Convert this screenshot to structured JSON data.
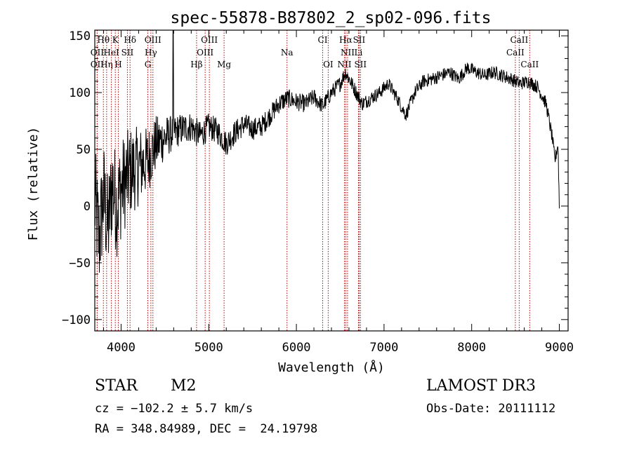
{
  "chart_data": {
    "type": "line",
    "title": "spec-55878-B87802_2_sp02-096.fits",
    "xlabel": "Wavelength (Å)",
    "ylabel": "Flux (relative)",
    "xlim": [
      3700,
      9100
    ],
    "ylim": [
      -110,
      155
    ],
    "xticks": [
      4000,
      5000,
      6000,
      7000,
      8000,
      9000
    ],
    "yticks": [
      -100,
      -50,
      0,
      50,
      100,
      150
    ],
    "x_tick_labels": [
      "4000",
      "5000",
      "6000",
      "7000",
      "8000",
      "9000"
    ],
    "y_tick_labels": [
      "−100",
      "−50",
      "0",
      "50",
      "100",
      "150"
    ],
    "grid": false,
    "series": [
      {
        "name": "flux",
        "noise_sigma_by_wavelength": [
          [
            3700,
            50
          ],
          [
            4000,
            45
          ],
          [
            4400,
            25
          ],
          [
            4600,
            15
          ],
          [
            5000,
            12
          ],
          [
            6000,
            8
          ],
          [
            7000,
            6
          ],
          [
            9000,
            6
          ]
        ],
        "points": [
          [
            3700,
            5
          ],
          [
            3750,
            -30
          ],
          [
            3800,
            10
          ],
          [
            3850,
            -20
          ],
          [
            3900,
            20
          ],
          [
            3950,
            0
          ],
          [
            4000,
            15
          ],
          [
            4100,
            30
          ],
          [
            4200,
            35
          ],
          [
            4300,
            40
          ],
          [
            4400,
            55
          ],
          [
            4500,
            60
          ],
          [
            4600,
            65
          ],
          [
            4700,
            68
          ],
          [
            4800,
            70
          ],
          [
            4900,
            62
          ],
          [
            5000,
            70
          ],
          [
            5100,
            66
          ],
          [
            5200,
            55
          ],
          [
            5300,
            65
          ],
          [
            5400,
            72
          ],
          [
            5500,
            68
          ],
          [
            5600,
            70
          ],
          [
            5700,
            80
          ],
          [
            5800,
            90
          ],
          [
            5900,
            95
          ],
          [
            6000,
            92
          ],
          [
            6100,
            90
          ],
          [
            6200,
            96
          ],
          [
            6300,
            88
          ],
          [
            6400,
            100
          ],
          [
            6500,
            108
          ],
          [
            6560,
            118
          ],
          [
            6650,
            105
          ],
          [
            6750,
            90
          ],
          [
            6850,
            95
          ],
          [
            6950,
            100
          ],
          [
            7050,
            108
          ],
          [
            7150,
            95
          ],
          [
            7250,
            80
          ],
          [
            7350,
            100
          ],
          [
            7450,
            110
          ],
          [
            7550,
            112
          ],
          [
            7650,
            115
          ],
          [
            7750,
            118
          ],
          [
            7850,
            112
          ],
          [
            7950,
            122
          ],
          [
            8050,
            118
          ],
          [
            8150,
            115
          ],
          [
            8250,
            118
          ],
          [
            8350,
            115
          ],
          [
            8450,
            112
          ],
          [
            8550,
            108
          ],
          [
            8650,
            110
          ],
          [
            8750,
            105
          ],
          [
            8850,
            90
          ],
          [
            8920,
            60
          ],
          [
            8950,
            40
          ],
          [
            8985,
            55
          ],
          [
            9000,
            0
          ]
        ]
      }
    ],
    "line_markers": [
      {
        "label": "Hθ",
        "wavelength": 3798,
        "row": 1
      },
      {
        "label": "K",
        "wavelength": 3934,
        "row": 1
      },
      {
        "label": "Hδ",
        "wavelength": 4102,
        "row": 1
      },
      {
        "label": "OIII",
        "wavelength": 4363,
        "row": 1
      },
      {
        "label": "OIII",
        "wavelength": 5007,
        "row": 1
      },
      {
        "label": "CI",
        "wavelength": 6300,
        "row": 1
      },
      {
        "label": "Hα",
        "wavelength": 6563,
        "row": 1
      },
      {
        "label": "SII",
        "wavelength": 6716,
        "row": 1
      },
      {
        "label": "CaII",
        "wavelength": 8542,
        "row": 1
      },
      {
        "label": "OII",
        "wavelength": 3727,
        "row": 2
      },
      {
        "label": "HeI",
        "wavelength": 3889,
        "row": 2
      },
      {
        "label": "SII",
        "wavelength": 4072,
        "row": 2
      },
      {
        "label": "Hγ",
        "wavelength": 4340,
        "row": 2
      },
      {
        "label": "OIII",
        "wavelength": 4959,
        "row": 2
      },
      {
        "label": "Na",
        "wavelength": 5893,
        "row": 2
      },
      {
        "label": "NII",
        "wavelength": 6584,
        "row": 2
      },
      {
        "label": "Li",
        "wavelength": 6708,
        "row": 2
      },
      {
        "label": "CaII",
        "wavelength": 8498,
        "row": 2
      },
      {
        "label": "OII",
        "wavelength": 3727,
        "row": 3
      },
      {
        "label": "Hη",
        "wavelength": 3835,
        "row": 3
      },
      {
        "label": "H",
        "wavelength": 3968,
        "row": 3
      },
      {
        "label": "G",
        "wavelength": 4305,
        "row": 3
      },
      {
        "label": "Hβ",
        "wavelength": 4861,
        "row": 3
      },
      {
        "label": "Mg",
        "wavelength": 5175,
        "row": 3
      },
      {
        "label": "OI",
        "wavelength": 6363,
        "row": 3
      },
      {
        "label": "NII",
        "wavelength": 6548,
        "row": 3
      },
      {
        "label": "SII",
        "wavelength": 6731,
        "row": 3
      },
      {
        "label": "CaII",
        "wavelength": 8662,
        "row": 3
      }
    ]
  },
  "info": {
    "object_class": "STAR",
    "subclass": "M2",
    "redshift": "cz = −102.2 ± 5.7 km/s",
    "coordinates": "RA = 348.84989, DEC =  24.19798",
    "survey": "LAMOST DR3",
    "obs_date": "Obs-Date: 20111112"
  }
}
